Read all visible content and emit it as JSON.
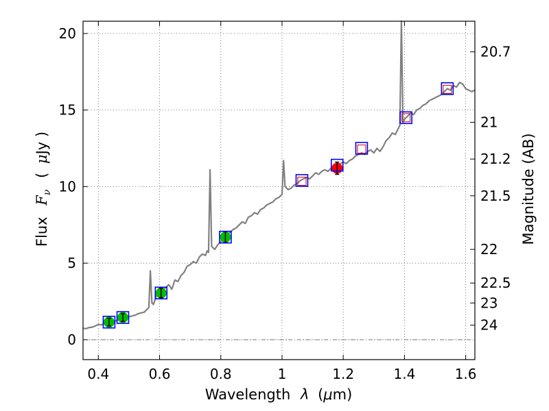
{
  "chart_data": {
    "type": "scatter",
    "title": "",
    "xlabel_text": "Wavelength",
    "xlabel_symbol": "λ",
    "xlabel_unit_open": "(",
    "xlabel_unit_mu": "μ",
    "xlabel_unit_rest": "m)",
    "ylabel_text": "Flux",
    "ylabel_symbol": "F",
    "ylabel_sub": "ν",
    "ylabel_unit_open": "(",
    "ylabel_unit_mu": "μ",
    "ylabel_unit_rest": "Jy )",
    "y2label": "Magnitude (AB)",
    "xlim": [
      0.35,
      1.63
    ],
    "ylim": [
      -1.3,
      20.8
    ],
    "grid": true,
    "x_ticks": [
      {
        "v": 0.4,
        "label": "0.4"
      },
      {
        "v": 0.6,
        "label": "0.6"
      },
      {
        "v": 0.8,
        "label": "0.8"
      },
      {
        "v": 1.0,
        "label": "1"
      },
      {
        "v": 1.2,
        "label": "1.2"
      },
      {
        "v": 1.4,
        "label": "1.4"
      },
      {
        "v": 1.6,
        "label": "1.6"
      }
    ],
    "y_ticks": [
      {
        "v": 0,
        "label": "0"
      },
      {
        "v": 5,
        "label": "5"
      },
      {
        "v": 10,
        "label": "10"
      },
      {
        "v": 15,
        "label": "15"
      },
      {
        "v": 20,
        "label": "20"
      }
    ],
    "mag_ticks": [
      {
        "flux": 18.8,
        "label": "20.7"
      },
      {
        "flux": 14.2,
        "label": "21"
      },
      {
        "flux": 11.8,
        "label": "21.2"
      },
      {
        "flux": 9.4,
        "label": "21.5"
      },
      {
        "flux": 5.9,
        "label": "22"
      },
      {
        "flux": 3.7,
        "label": "22.5"
      },
      {
        "flux": 2.4,
        "label": "23"
      },
      {
        "flux": 0.95,
        "label": "24"
      }
    ],
    "spectrum": {
      "name": "model spectrum",
      "color": "#808080",
      "points": [
        [
          0.35,
          0.75
        ],
        [
          0.36,
          0.72
        ],
        [
          0.37,
          0.8
        ],
        [
          0.38,
          0.82
        ],
        [
          0.39,
          0.9
        ],
        [
          0.4,
          1.0
        ],
        [
          0.41,
          0.97
        ],
        [
          0.42,
          1.05
        ],
        [
          0.43,
          1.1
        ],
        [
          0.44,
          1.12
        ],
        [
          0.45,
          1.18
        ],
        [
          0.46,
          1.25
        ],
        [
          0.47,
          1.35
        ],
        [
          0.48,
          1.38
        ],
        [
          0.49,
          1.45
        ],
        [
          0.5,
          1.5
        ],
        [
          0.51,
          1.55
        ],
        [
          0.52,
          1.6
        ],
        [
          0.53,
          1.7
        ],
        [
          0.54,
          1.75
        ],
        [
          0.55,
          1.8
        ],
        [
          0.56,
          2.0
        ],
        [
          0.565,
          2.1
        ],
        [
          0.57,
          4.5
        ],
        [
          0.575,
          2.4
        ],
        [
          0.58,
          2.3
        ],
        [
          0.59,
          2.9
        ],
        [
          0.6,
          3.0
        ],
        [
          0.61,
          3.2
        ],
        [
          0.62,
          3.4
        ],
        [
          0.63,
          3.6
        ],
        [
          0.64,
          3.3
        ],
        [
          0.65,
          3.9
        ],
        [
          0.66,
          3.8
        ],
        [
          0.67,
          4.2
        ],
        [
          0.68,
          4.4
        ],
        [
          0.69,
          4.8
        ],
        [
          0.7,
          4.9
        ],
        [
          0.71,
          5.1
        ],
        [
          0.72,
          5.0
        ],
        [
          0.73,
          5.4
        ],
        [
          0.74,
          5.6
        ],
        [
          0.75,
          5.5
        ],
        [
          0.755,
          5.8
        ],
        [
          0.76,
          5.7
        ],
        [
          0.765,
          11.1
        ],
        [
          0.77,
          6.1
        ],
        [
          0.78,
          5.9
        ],
        [
          0.79,
          6.2
        ],
        [
          0.8,
          6.4
        ],
        [
          0.81,
          6.6
        ],
        [
          0.82,
          6.9
        ],
        [
          0.83,
          7.0
        ],
        [
          0.84,
          7.2
        ],
        [
          0.85,
          7.3
        ],
        [
          0.86,
          7.5
        ],
        [
          0.87,
          7.7
        ],
        [
          0.88,
          7.6
        ],
        [
          0.89,
          8.0
        ],
        [
          0.9,
          8.1
        ],
        [
          0.91,
          8.3
        ],
        [
          0.92,
          8.2
        ],
        [
          0.93,
          8.5
        ],
        [
          0.94,
          8.6
        ],
        [
          0.95,
          8.8
        ],
        [
          0.96,
          8.9
        ],
        [
          0.97,
          9.0
        ],
        [
          0.98,
          9.2
        ],
        [
          0.99,
          9.3
        ],
        [
          1.0,
          9.5
        ],
        [
          1.005,
          11.7
        ],
        [
          1.01,
          10.0
        ],
        [
          1.02,
          9.8
        ],
        [
          1.03,
          9.9
        ],
        [
          1.04,
          10.1
        ],
        [
          1.05,
          10.2
        ],
        [
          1.06,
          10.4
        ],
        [
          1.07,
          10.5
        ],
        [
          1.08,
          10.6
        ],
        [
          1.09,
          10.5
        ],
        [
          1.1,
          10.7
        ],
        [
          1.11,
          10.9
        ],
        [
          1.12,
          10.8
        ],
        [
          1.13,
          11.0
        ],
        [
          1.14,
          11.1
        ],
        [
          1.15,
          11.0
        ],
        [
          1.16,
          11.2
        ],
        [
          1.17,
          11.3
        ],
        [
          1.18,
          11.2
        ],
        [
          1.19,
          11.5
        ],
        [
          1.2,
          11.6
        ],
        [
          1.21,
          11.5
        ],
        [
          1.22,
          11.7
        ],
        [
          1.23,
          11.8
        ],
        [
          1.24,
          12.0
        ],
        [
          1.25,
          12.1
        ],
        [
          1.26,
          12.2
        ],
        [
          1.27,
          12.1
        ],
        [
          1.28,
          12.3
        ],
        [
          1.29,
          12.4
        ],
        [
          1.3,
          12.2
        ],
        [
          1.31,
          12.5
        ],
        [
          1.32,
          12.3
        ],
        [
          1.33,
          12.6
        ],
        [
          1.34,
          13.0
        ],
        [
          1.35,
          13.2
        ],
        [
          1.36,
          13.5
        ],
        [
          1.37,
          13.4
        ],
        [
          1.38,
          13.8
        ],
        [
          1.385,
          14.0
        ],
        [
          1.39,
          21.0
        ],
        [
          1.395,
          14.2
        ],
        [
          1.4,
          14.4
        ],
        [
          1.41,
          14.6
        ],
        [
          1.42,
          14.8
        ],
        [
          1.43,
          14.7
        ],
        [
          1.44,
          15.0
        ],
        [
          1.45,
          15.1
        ],
        [
          1.46,
          15.3
        ],
        [
          1.47,
          15.4
        ],
        [
          1.48,
          15.6
        ],
        [
          1.49,
          15.7
        ],
        [
          1.5,
          15.8
        ],
        [
          1.51,
          15.9
        ],
        [
          1.52,
          16.0
        ],
        [
          1.53,
          16.2
        ],
        [
          1.54,
          16.4
        ],
        [
          1.55,
          16.3
        ],
        [
          1.56,
          16.6
        ],
        [
          1.57,
          16.5
        ],
        [
          1.58,
          16.8
        ],
        [
          1.59,
          16.7
        ],
        [
          1.6,
          16.4
        ],
        [
          1.61,
          16.3
        ],
        [
          1.62,
          16.2
        ],
        [
          1.63,
          16.3
        ]
      ]
    },
    "model_boxes": [
      {
        "x": 0.435,
        "y": 1.15
      },
      {
        "x": 0.48,
        "y": 1.45
      },
      {
        "x": 0.605,
        "y": 3.05
      },
      {
        "x": 0.815,
        "y": 6.7
      },
      {
        "x": 1.065,
        "y": 10.4
      },
      {
        "x": 1.18,
        "y": 11.4
      },
      {
        "x": 1.26,
        "y": 12.5
      },
      {
        "x": 1.405,
        "y": 14.5
      },
      {
        "x": 1.54,
        "y": 16.4
      }
    ],
    "detections": [
      {
        "x": 0.435,
        "y": 1.15,
        "err": 0.25,
        "color": "#00bb00"
      },
      {
        "x": 0.48,
        "y": 1.45,
        "err": 0.25,
        "color": "#00bb00"
      },
      {
        "x": 0.605,
        "y": 3.05,
        "err": 0.3,
        "color": "#00bb00"
      },
      {
        "x": 0.815,
        "y": 6.7,
        "err": 0.35,
        "color": "#00bb00"
      },
      {
        "x": 1.18,
        "y": 11.2,
        "err": 0.4,
        "color": "#ff0000"
      }
    ],
    "upper_limits": [
      {
        "x": 1.065,
        "y": 10.35
      },
      {
        "x": 1.26,
        "y": 12.45
      },
      {
        "x": 1.405,
        "y": 14.5
      },
      {
        "x": 1.54,
        "y": 16.35
      }
    ],
    "colors": {
      "box": "#0000ff",
      "upper_limit": "#cc0000",
      "grid": "#555555"
    }
  }
}
